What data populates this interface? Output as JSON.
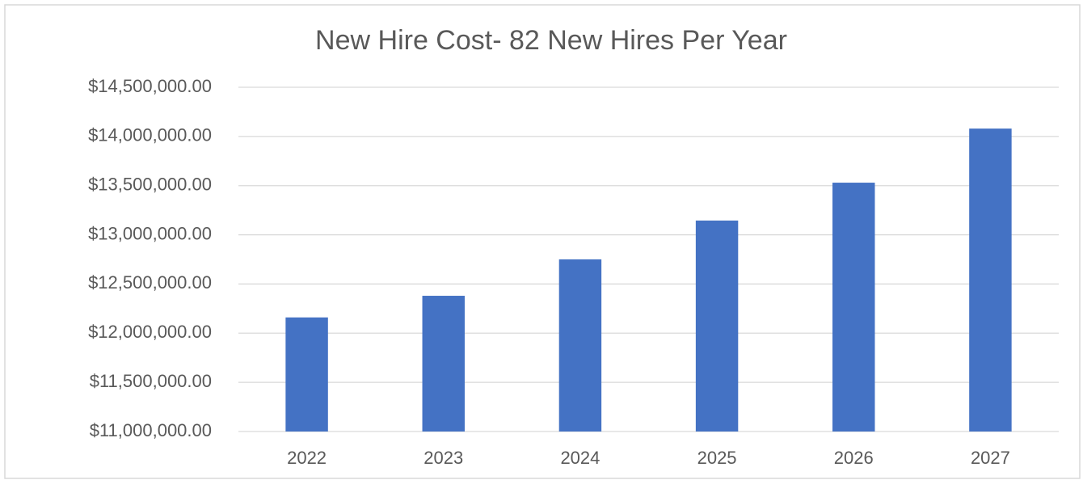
{
  "chart_data": {
    "type": "bar",
    "title": "New Hire Cost- 82 New Hires Per Year",
    "categories": [
      "2022",
      "2023",
      "2024",
      "2025",
      "2026",
      "2027"
    ],
    "values": [
      12160000,
      12380000,
      12750000,
      13145000,
      13530000,
      14080000
    ],
    "color": "#4472c4",
    "ylim": [
      11000000,
      14500000
    ],
    "yticks": [
      {
        "value": 11000000,
        "label": "$11,000,000.00"
      },
      {
        "value": 11500000,
        "label": "$11,500,000.00"
      },
      {
        "value": 12000000,
        "label": "$12,000,000.00"
      },
      {
        "value": 12500000,
        "label": "$12,500,000.00"
      },
      {
        "value": 13000000,
        "label": "$13,000,000.00"
      },
      {
        "value": 13500000,
        "label": "$13,500,000.00"
      },
      {
        "value": 14000000,
        "label": "$14,000,000.00"
      },
      {
        "value": 14500000,
        "label": "$14,500,000.00"
      }
    ],
    "grid": true
  }
}
